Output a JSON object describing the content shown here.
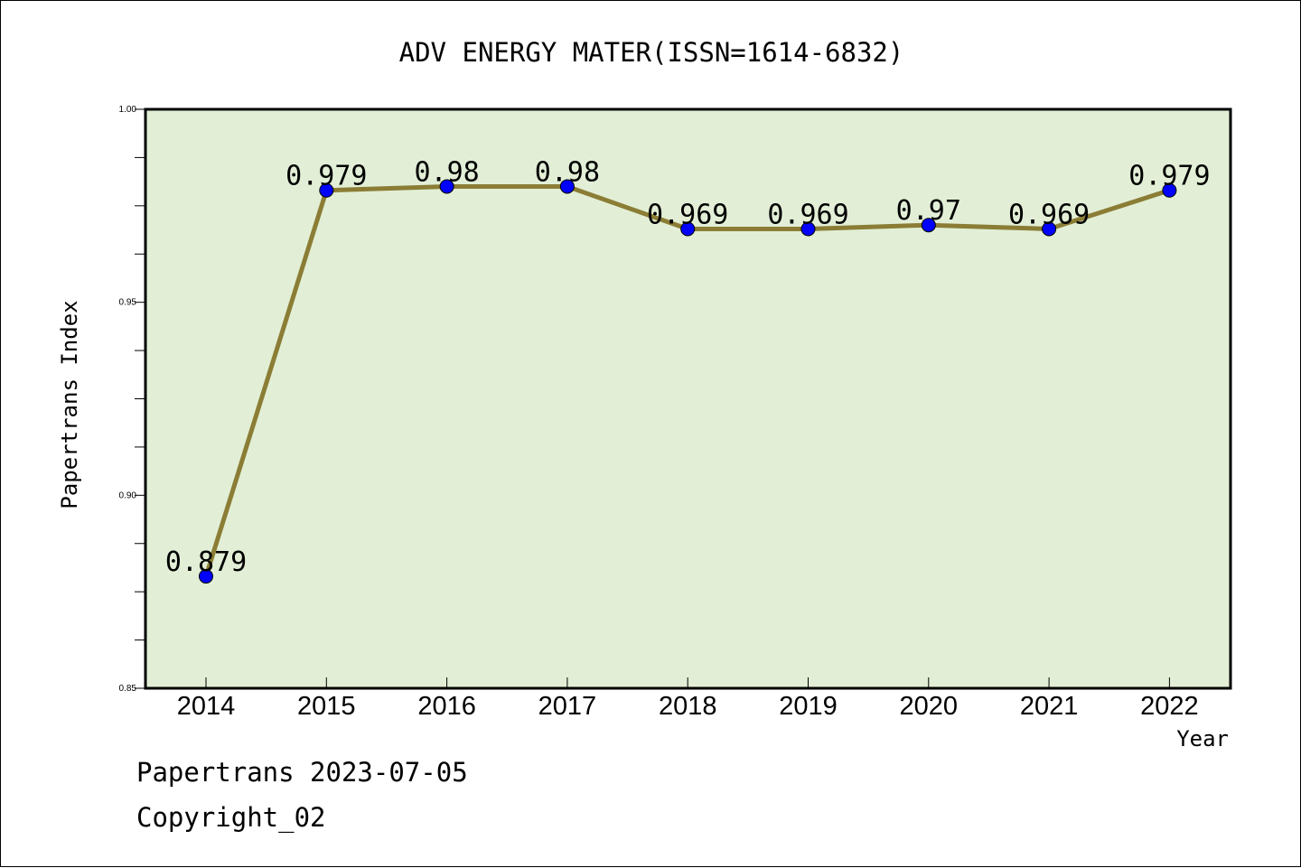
{
  "chart_data": {
    "type": "line",
    "title": "ADV ENERGY MATER(ISSN=1614-6832)",
    "xlabel": "Year",
    "ylabel": "Papertrans Index",
    "categories": [
      "2014",
      "2015",
      "2016",
      "2017",
      "2018",
      "2019",
      "2020",
      "2021",
      "2022"
    ],
    "values": [
      0.879,
      0.979,
      0.98,
      0.98,
      0.969,
      0.969,
      0.97,
      0.969,
      0.979
    ],
    "data_labels": [
      "0.879",
      "0.979",
      "0.98",
      "0.98",
      "0.969",
      "0.969",
      "0.97",
      "0.969",
      "0.979"
    ],
    "ylim": [
      0.85,
      1.0
    ],
    "yticks": [
      "0.85",
      "0.90",
      "0.95",
      "1.00"
    ],
    "grid": false,
    "colors": {
      "plot_background": "#e2efd6",
      "line": "#8b7d35",
      "marker": "#0000ff"
    }
  },
  "footer": {
    "line1": "Papertrans 2023-07-05",
    "line2": "Copyright_02"
  }
}
